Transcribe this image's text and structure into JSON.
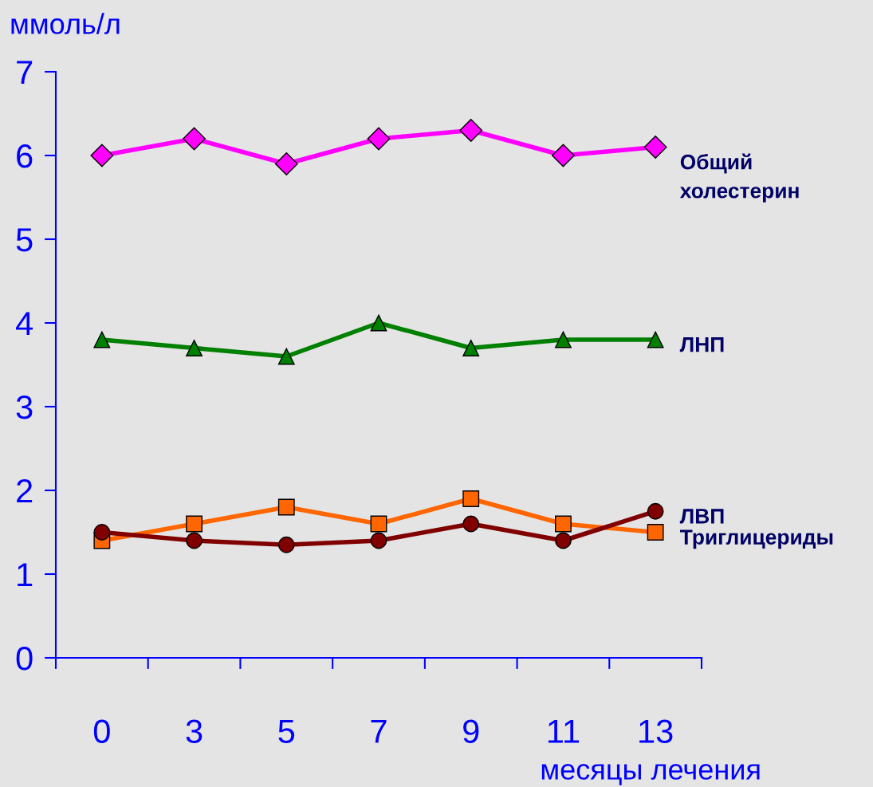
{
  "chart_data": {
    "type": "line",
    "ylabel": "ммоль/л",
    "xlabel": "месяцы лечения",
    "categories": [
      "0",
      "3",
      "5",
      "7",
      "9",
      "11",
      "13"
    ],
    "ylim": [
      0,
      7
    ],
    "yticks": [
      0,
      1,
      2,
      3,
      4,
      5,
      6,
      7
    ],
    "grid": false,
    "legend": false,
    "line_style": "solid",
    "series": [
      {
        "name": "Общий холестерин",
        "color": "#ff00ff",
        "marker": "diamond",
        "values": [
          6.0,
          6.2,
          5.9,
          6.2,
          6.3,
          6.0,
          6.1
        ]
      },
      {
        "name": "ЛНП",
        "color": "#008000",
        "marker": "triangle",
        "values": [
          3.8,
          3.7,
          3.6,
          4.0,
          3.7,
          3.8,
          3.8
        ]
      },
      {
        "name": "Триглицериды",
        "color": "#ff6600",
        "marker": "square",
        "values": [
          1.4,
          1.6,
          1.8,
          1.6,
          1.9,
          1.6,
          1.5
        ]
      },
      {
        "name": "ЛВП",
        "color": "#800000",
        "marker": "circle",
        "values": [
          1.5,
          1.4,
          1.35,
          1.4,
          1.6,
          1.4,
          1.75
        ]
      }
    ]
  }
}
